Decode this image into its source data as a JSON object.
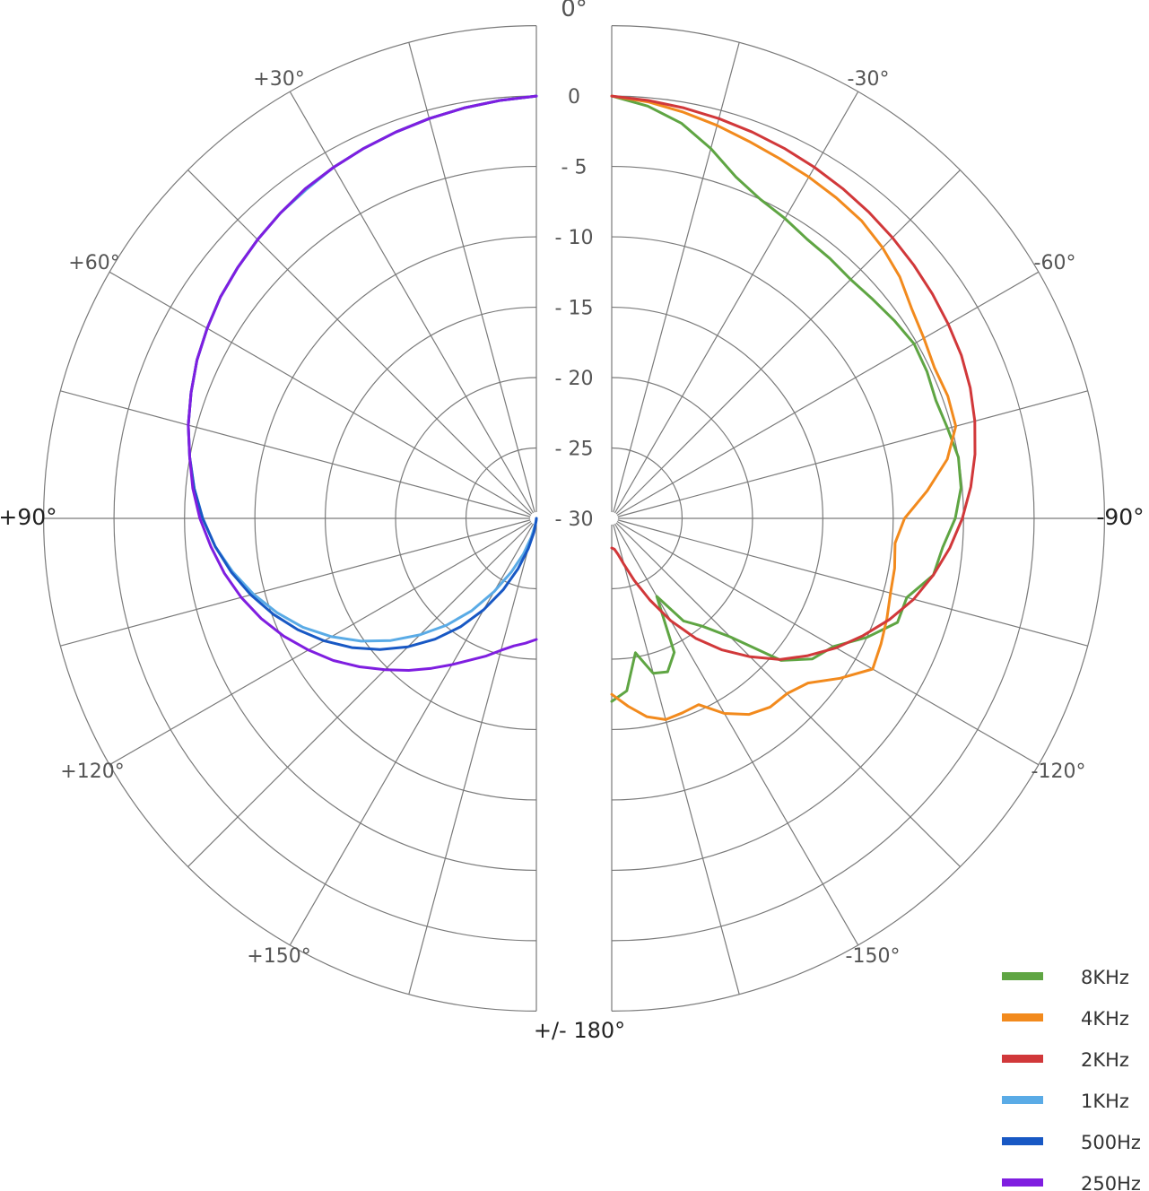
{
  "chart_data": {
    "type": "polar-line",
    "title": "",
    "angle_labels": {
      "top": "0°",
      "bottom": "+/- 180°",
      "left": [
        "+30°",
        "+60°",
        "+90°",
        "+120°",
        "+150°"
      ],
      "right": [
        "-30°",
        "-60°",
        "-90°",
        "-120°",
        "-150°"
      ]
    },
    "radial_ticks": [
      "0",
      "- 5",
      "- 10",
      "- 15",
      "- 20",
      "- 25",
      "- 30"
    ],
    "radial_range_db": [
      -30,
      0
    ],
    "grid": true,
    "legend_position": "bottom-right",
    "angle_step_deg": 15,
    "series": [
      {
        "name": "8KHz",
        "color": "#5fa543",
        "side": "right",
        "angles_deg": [
          0,
          5,
          10,
          15,
          20,
          25,
          30,
          35,
          40,
          45,
          50,
          55,
          60,
          65,
          70,
          75,
          80,
          85,
          90,
          95,
          100,
          105,
          110,
          115,
          120,
          125,
          130,
          135,
          140,
          145,
          150,
          155,
          160,
          165,
          170,
          175,
          180
        ],
        "values_db": [
          0,
          -0.6,
          -1.5,
          -2.8,
          -4.2,
          -5,
          -5.4,
          -5.8,
          -5.9,
          -6,
          -5.8,
          -5.5,
          -5.2,
          -5.3,
          -5.5,
          -5.3,
          -5,
          -5.1,
          -5.6,
          -6.4,
          -6.8,
          -8.3,
          -8.4,
          -10,
          -11.8,
          -12.6,
          -14.3,
          -18.1,
          -20,
          -21.1,
          -23.6,
          -19.5,
          -18.4,
          -18.6,
          -20.3,
          -17.7,
          -17
        ]
      },
      {
        "name": "4KHz",
        "color": "#f28a1d",
        "side": "right",
        "angles_deg": [
          0,
          5,
          10,
          15,
          20,
          25,
          30,
          35,
          40,
          45,
          50,
          55,
          60,
          65,
          70,
          75,
          80,
          85,
          90,
          95,
          100,
          105,
          110,
          115,
          120,
          125,
          130,
          135,
          140,
          145,
          150,
          155,
          160,
          165,
          170,
          175,
          180
        ],
        "values_db": [
          0,
          -0.3,
          -0.7,
          -1.1,
          -1.5,
          -1.8,
          -2,
          -2.2,
          -2.4,
          -2.8,
          -3.3,
          -4,
          -4.4,
          -4.7,
          -4.6,
          -4.7,
          -5.8,
          -7.5,
          -9.2,
          -9.8,
          -9.6,
          -9.5,
          -9.2,
          -8.9,
          -8.6,
          -10.2,
          -11.8,
          -12.4,
          -12.5,
          -13,
          -14,
          -15.4,
          -15.3,
          -15.2,
          -15.7,
          -16.6,
          -17.5
        ]
      },
      {
        "name": "2KHz",
        "color": "#d1383a",
        "side": "right",
        "angles_deg": [
          0,
          5,
          10,
          15,
          20,
          25,
          30,
          35,
          40,
          45,
          50,
          55,
          60,
          65,
          70,
          75,
          80,
          85,
          90,
          95,
          100,
          105,
          110,
          115,
          120,
          125,
          130,
          135,
          140,
          145,
          150,
          155,
          160,
          165,
          170,
          175,
          180
        ],
        "values_db": [
          0,
          -0.2,
          -0.4,
          -0.6,
          -0.8,
          -1,
          -1.2,
          -1.4,
          -1.6,
          -1.8,
          -2,
          -2.2,
          -2.4,
          -2.6,
          -2.9,
          -3.3,
          -3.8,
          -4.4,
          -5.1,
          -5.9,
          -6.8,
          -7.8,
          -9,
          -10.3,
          -11.6,
          -13,
          -14.4,
          -16.1,
          -17.8,
          -19.6,
          -21.6,
          -23.6,
          -25.3,
          -26.6,
          -27.4,
          -27.8,
          -27.9
        ]
      },
      {
        "name": "1KHz",
        "color": "#5aabe6",
        "side": "left",
        "angles_deg": [
          0,
          5,
          10,
          15,
          20,
          25,
          30,
          35,
          40,
          45,
          50,
          55,
          60,
          65,
          70,
          75,
          80,
          85,
          90,
          95,
          100,
          105,
          110,
          115,
          120,
          125,
          130,
          135,
          140,
          145,
          150,
          155,
          160,
          165,
          170,
          175,
          180
        ],
        "values_db": [
          0,
          -0.2,
          -0.4,
          -0.6,
          -0.8,
          -1,
          -1.2,
          -1.5,
          -1.7,
          -2,
          -2.3,
          -2.6,
          -3,
          -3.4,
          -3.9,
          -4.4,
          -5,
          -5.6,
          -6.3,
          -7.1,
          -8.1,
          -9.2,
          -10.4,
          -11.7,
          -13.2,
          -14.8,
          -16.5,
          -18.3,
          -20.1,
          -22,
          -24,
          -25.8,
          -27.3,
          -28.6,
          -29.5,
          -29.9,
          -30
        ]
      },
      {
        "name": "500Hz",
        "color": "#1858c4",
        "side": "left",
        "angles_deg": [
          0,
          5,
          10,
          15,
          20,
          25,
          30,
          35,
          40,
          45,
          50,
          55,
          60,
          65,
          70,
          75,
          80,
          85,
          90,
          95,
          100,
          105,
          110,
          115,
          120,
          125,
          130,
          135,
          140,
          145,
          150,
          155,
          160,
          165,
          170,
          175,
          180
        ],
        "values_db": [
          0,
          -0.2,
          -0.4,
          -0.6,
          -0.8,
          -1,
          -1.2,
          -1.4,
          -1.7,
          -2,
          -2.3,
          -2.6,
          -3,
          -3.4,
          -3.9,
          -4.4,
          -5,
          -5.6,
          -6.3,
          -7.1,
          -8,
          -9,
          -10.1,
          -11.3,
          -12.6,
          -14,
          -15.5,
          -17.1,
          -18.8,
          -20.6,
          -22.5,
          -24.4,
          -26.2,
          -27.8,
          -29,
          -29.8,
          -30
        ]
      },
      {
        "name": "250Hz",
        "color": "#7f1ee0",
        "side": "left",
        "angles_deg": [
          0,
          5,
          10,
          15,
          20,
          25,
          30,
          35,
          40,
          45,
          50,
          55,
          60,
          65,
          70,
          75,
          80,
          85,
          90,
          95,
          100,
          105,
          110,
          115,
          120,
          125,
          130,
          135,
          140,
          145,
          150,
          155,
          160,
          165,
          170,
          175,
          180
        ],
        "values_db": [
          0,
          -0.2,
          -0.4,
          -0.6,
          -0.8,
          -1,
          -1.2,
          -1.4,
          -1.7,
          -2,
          -2.3,
          -2.6,
          -3,
          -3.4,
          -3.9,
          -4.4,
          -5,
          -5.5,
          -6.1,
          -6.8,
          -7.5,
          -8.3,
          -9.2,
          -10.2,
          -11.3,
          -12.4,
          -13.6,
          -14.8,
          -15.9,
          -17,
          -18,
          -18.9,
          -19.6,
          -20.3,
          -20.8,
          -21.1,
          -21.4
        ]
      }
    ]
  }
}
